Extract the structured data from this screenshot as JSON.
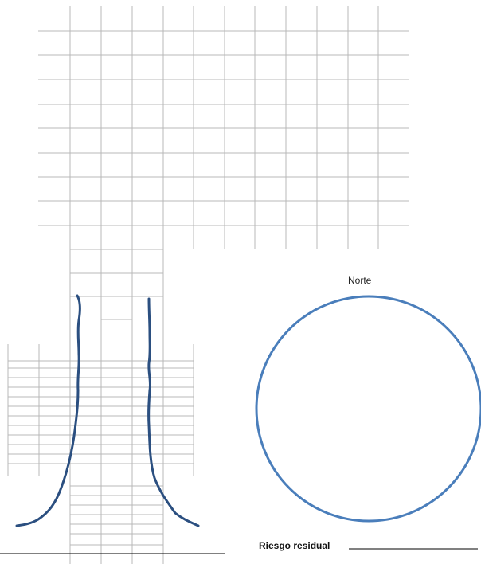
{
  "compass": {
    "north_label": "Norte",
    "stroke_color": "#4a7ebb"
  },
  "residual_risk": {
    "label": "Riesgo residual"
  },
  "colors": {
    "grid": "#b8b8b8",
    "sketch": "#2b4f80",
    "baseline": "#000000"
  }
}
